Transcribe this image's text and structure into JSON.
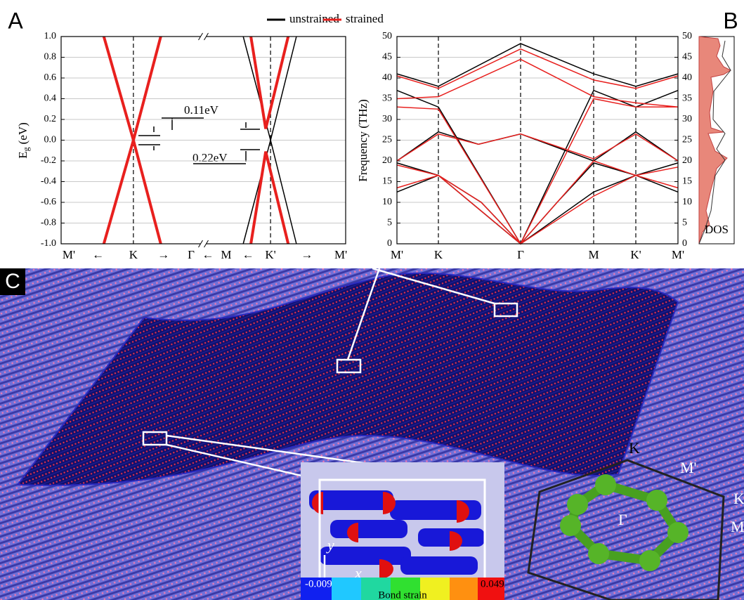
{
  "chart_data": [
    {
      "type": "line",
      "panel_label": "A",
      "ylabel": "E",
      "ylabel_sub": "g",
      "ylabel_unit": "(eV)",
      "xlim": [
        0,
        100
      ],
      "ylim": [
        -1,
        1
      ],
      "yticks": [
        {
          "value": -1,
          "label": "-1.0"
        },
        -0.8,
        -0.6,
        -0.4,
        -0.2,
        {
          "value": 0,
          "label": "0.0"
        },
        0.2,
        0.4,
        0.6,
        0.8,
        {
          "value": 1,
          "label": "1.0"
        }
      ],
      "xticks": [
        {
          "value": 2.7,
          "label": "M'"
        },
        {
          "value": 13,
          "label": "←"
        },
        {
          "value": 25.4,
          "label": "K"
        },
        {
          "value": 36,
          "label": "→"
        },
        {
          "value": 45.7,
          "label": "Γ"
        },
        {
          "value": 51.6,
          "label": "←"
        },
        {
          "value": 58,
          "label": "M"
        },
        {
          "value": 65.7,
          "label": "←"
        },
        {
          "value": 73.6,
          "label": "K'"
        },
        {
          "value": 86.4,
          "label": "→"
        },
        {
          "value": 98.3,
          "label": "M'"
        }
      ],
      "vlines": [
        25.4,
        73.6
      ],
      "axis_break_x": 50,
      "grid": true,
      "annotations": [
        "0.11eV",
        "0.22eV"
      ],
      "series": [
        {
          "name": "unstrained",
          "color": "#000000",
          "x": [
            15,
            25.4,
            35,
            null,
            15,
            25.4,
            35,
            null,
            64,
            73.6,
            82.7,
            null,
            64,
            73.6,
            82.7
          ],
          "values": [
            1,
            0,
            -1,
            null,
            -1,
            0,
            1,
            null,
            1,
            0,
            -1,
            null,
            -1,
            0,
            1
          ]
        },
        {
          "name": "strained",
          "color": "#e8201e",
          "x": [
            15,
            25.4,
            35,
            null,
            15,
            25.4,
            35,
            null,
            66.7,
            71.9,
            79.8,
            null,
            66.7,
            71.9,
            79.8
          ],
          "values": [
            1,
            0,
            -1,
            null,
            -1,
            0,
            1,
            null,
            1,
            0.11,
            1,
            null,
            -1,
            -0.11,
            -1
          ]
        }
      ]
    },
    {
      "type": "line",
      "panel_label": "B",
      "ylabel": "Frequency  (THz)",
      "dos_label": "DOS",
      "xlim": [
        0,
        1
      ],
      "ylim": [
        0,
        50
      ],
      "yticks": [
        0,
        5,
        10,
        15,
        20,
        25,
        30,
        35,
        40,
        45,
        50
      ],
      "y2lim": [
        0,
        50
      ],
      "y2ticks": [
        0,
        5,
        10,
        15,
        20,
        25,
        30,
        35,
        40,
        45,
        50
      ],
      "xticks": [
        {
          "value": 0,
          "label": "M'"
        },
        {
          "value": 0.1475,
          "label": "K"
        },
        {
          "value": 0.44,
          "label": "Γ"
        },
        {
          "value": 0.7,
          "label": "M"
        },
        {
          "value": 0.85,
          "label": "K'"
        },
        {
          "value": 1,
          "label": "M'"
        }
      ],
      "vlines": [
        0.1475,
        0.44,
        0.7,
        0.85
      ],
      "grid": true,
      "series": [
        {
          "color": "#000000",
          "x": [
            0,
            0.1475,
            0.44,
            0.7,
            0.85,
            1,
            null,
            0,
            0.1475,
            0.29,
            0.44,
            0.7,
            0.85,
            1,
            null,
            0,
            0.1475,
            0.44,
            0.7,
            0.85,
            1,
            null,
            0,
            0.1475,
            0.3,
            0.44,
            0.57,
            0.7,
            0.85,
            1,
            null,
            0,
            0.1475,
            0.44,
            0.7,
            0.85,
            1
          ],
          "values": [
            41,
            38,
            48.3,
            41,
            38,
            41,
            null,
            20,
            27,
            24,
            26.5,
            20,
            27,
            20,
            null,
            12.5,
            16.5,
            0,
            12.5,
            16.5,
            12.5,
            null,
            19.5,
            16.5,
            10,
            0,
            10,
            19.5,
            16.5,
            19.5,
            null,
            37,
            33,
            0,
            37,
            33,
            37
          ]
        },
        {
          "color": "#e8201e",
          "x": [
            0,
            0.1475,
            0.44,
            0.7,
            0.85,
            1,
            null,
            0,
            0.1475,
            0.44,
            0.7,
            0.85,
            1,
            null,
            0,
            0.1475,
            0.29,
            0.44,
            0.7,
            0.85,
            1,
            null,
            0,
            0.1475,
            0.44,
            0.7,
            0.85,
            1,
            null,
            0,
            0.1475,
            0.3,
            0.44,
            0.57,
            0.7,
            0.85,
            1,
            null,
            0,
            0.1475,
            0.44,
            0.7,
            0.85,
            1
          ],
          "values": [
            40.5,
            37.5,
            47,
            39.5,
            37.5,
            40.5,
            null,
            35,
            35.5,
            44.5,
            35.5,
            34,
            33,
            null,
            20,
            26.5,
            24,
            26.5,
            20.5,
            26.5,
            20,
            null,
            13.5,
            16.5,
            0,
            11.5,
            16.5,
            13.5,
            null,
            19,
            16.5,
            10,
            0,
            10,
            20,
            16.5,
            18.5,
            null,
            33,
            32.5,
            0,
            35,
            33,
            33
          ]
        }
      ]
    }
  ],
  "panel_c": {
    "label": "C",
    "bz_labels": [
      "K",
      "M'",
      "K",
      "M",
      "Γ"
    ],
    "axis_y": "y",
    "axis_x": "x",
    "colorbar_min": "-0.009",
    "colorbar_max": "0.049",
    "colorbar_title": "Bond strain"
  }
}
